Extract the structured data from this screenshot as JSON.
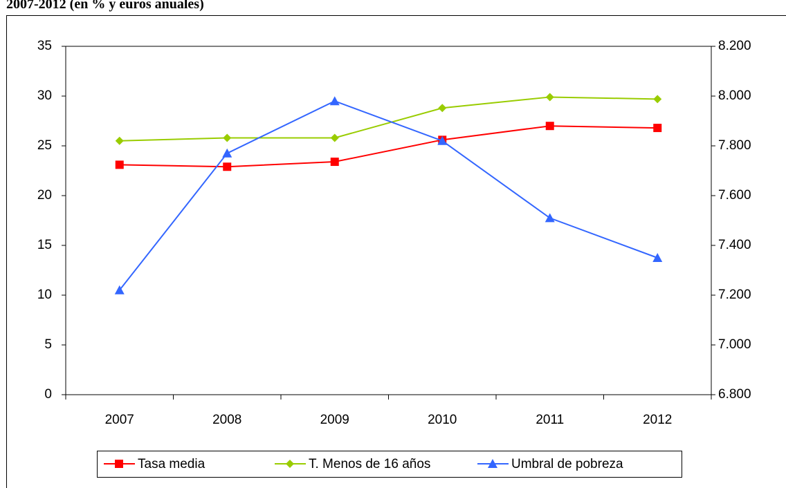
{
  "chart_data": {
    "type": "line",
    "title": "2007-2012  (en % y euros anuales)",
    "categories": [
      "2007",
      "2008",
      "2009",
      "2010",
      "2011",
      "2012"
    ],
    "series": [
      {
        "name": "Tasa media",
        "color": "#ff0000",
        "marker": "square",
        "values": [
          23.1,
          22.9,
          23.4,
          25.6,
          27.0,
          26.8
        ]
      },
      {
        "name": "T. Menos de 16 años",
        "color": "#99cc00",
        "marker": "diamond",
        "values": [
          25.5,
          25.8,
          25.8,
          28.8,
          29.9,
          29.7
        ]
      },
      {
        "name": "Umbral de pobreza",
        "color": "#3366ff",
        "marker": "triangle",
        "axis": "y2",
        "values": [
          7220,
          7770,
          7980,
          7820,
          7510,
          7350
        ]
      }
    ],
    "ylim": [
      0,
      35
    ],
    "yticks": [
      0,
      5,
      10,
      15,
      20,
      25,
      30,
      35
    ],
    "y2lim": [
      6800,
      8200
    ],
    "y2ticks": [
      {
        "value": 6800,
        "label": "6.800"
      },
      {
        "value": 7000,
        "label": "7.000"
      },
      {
        "value": 7200,
        "label": "7.200"
      },
      {
        "value": 7400,
        "label": "7.400"
      },
      {
        "value": 7600,
        "label": "7.600"
      },
      {
        "value": 7800,
        "label": "7.800"
      },
      {
        "value": 8000,
        "label": "8.000"
      },
      {
        "value": 8200,
        "label": "8.200"
      }
    ],
    "legend": "bottom",
    "grid": false
  }
}
